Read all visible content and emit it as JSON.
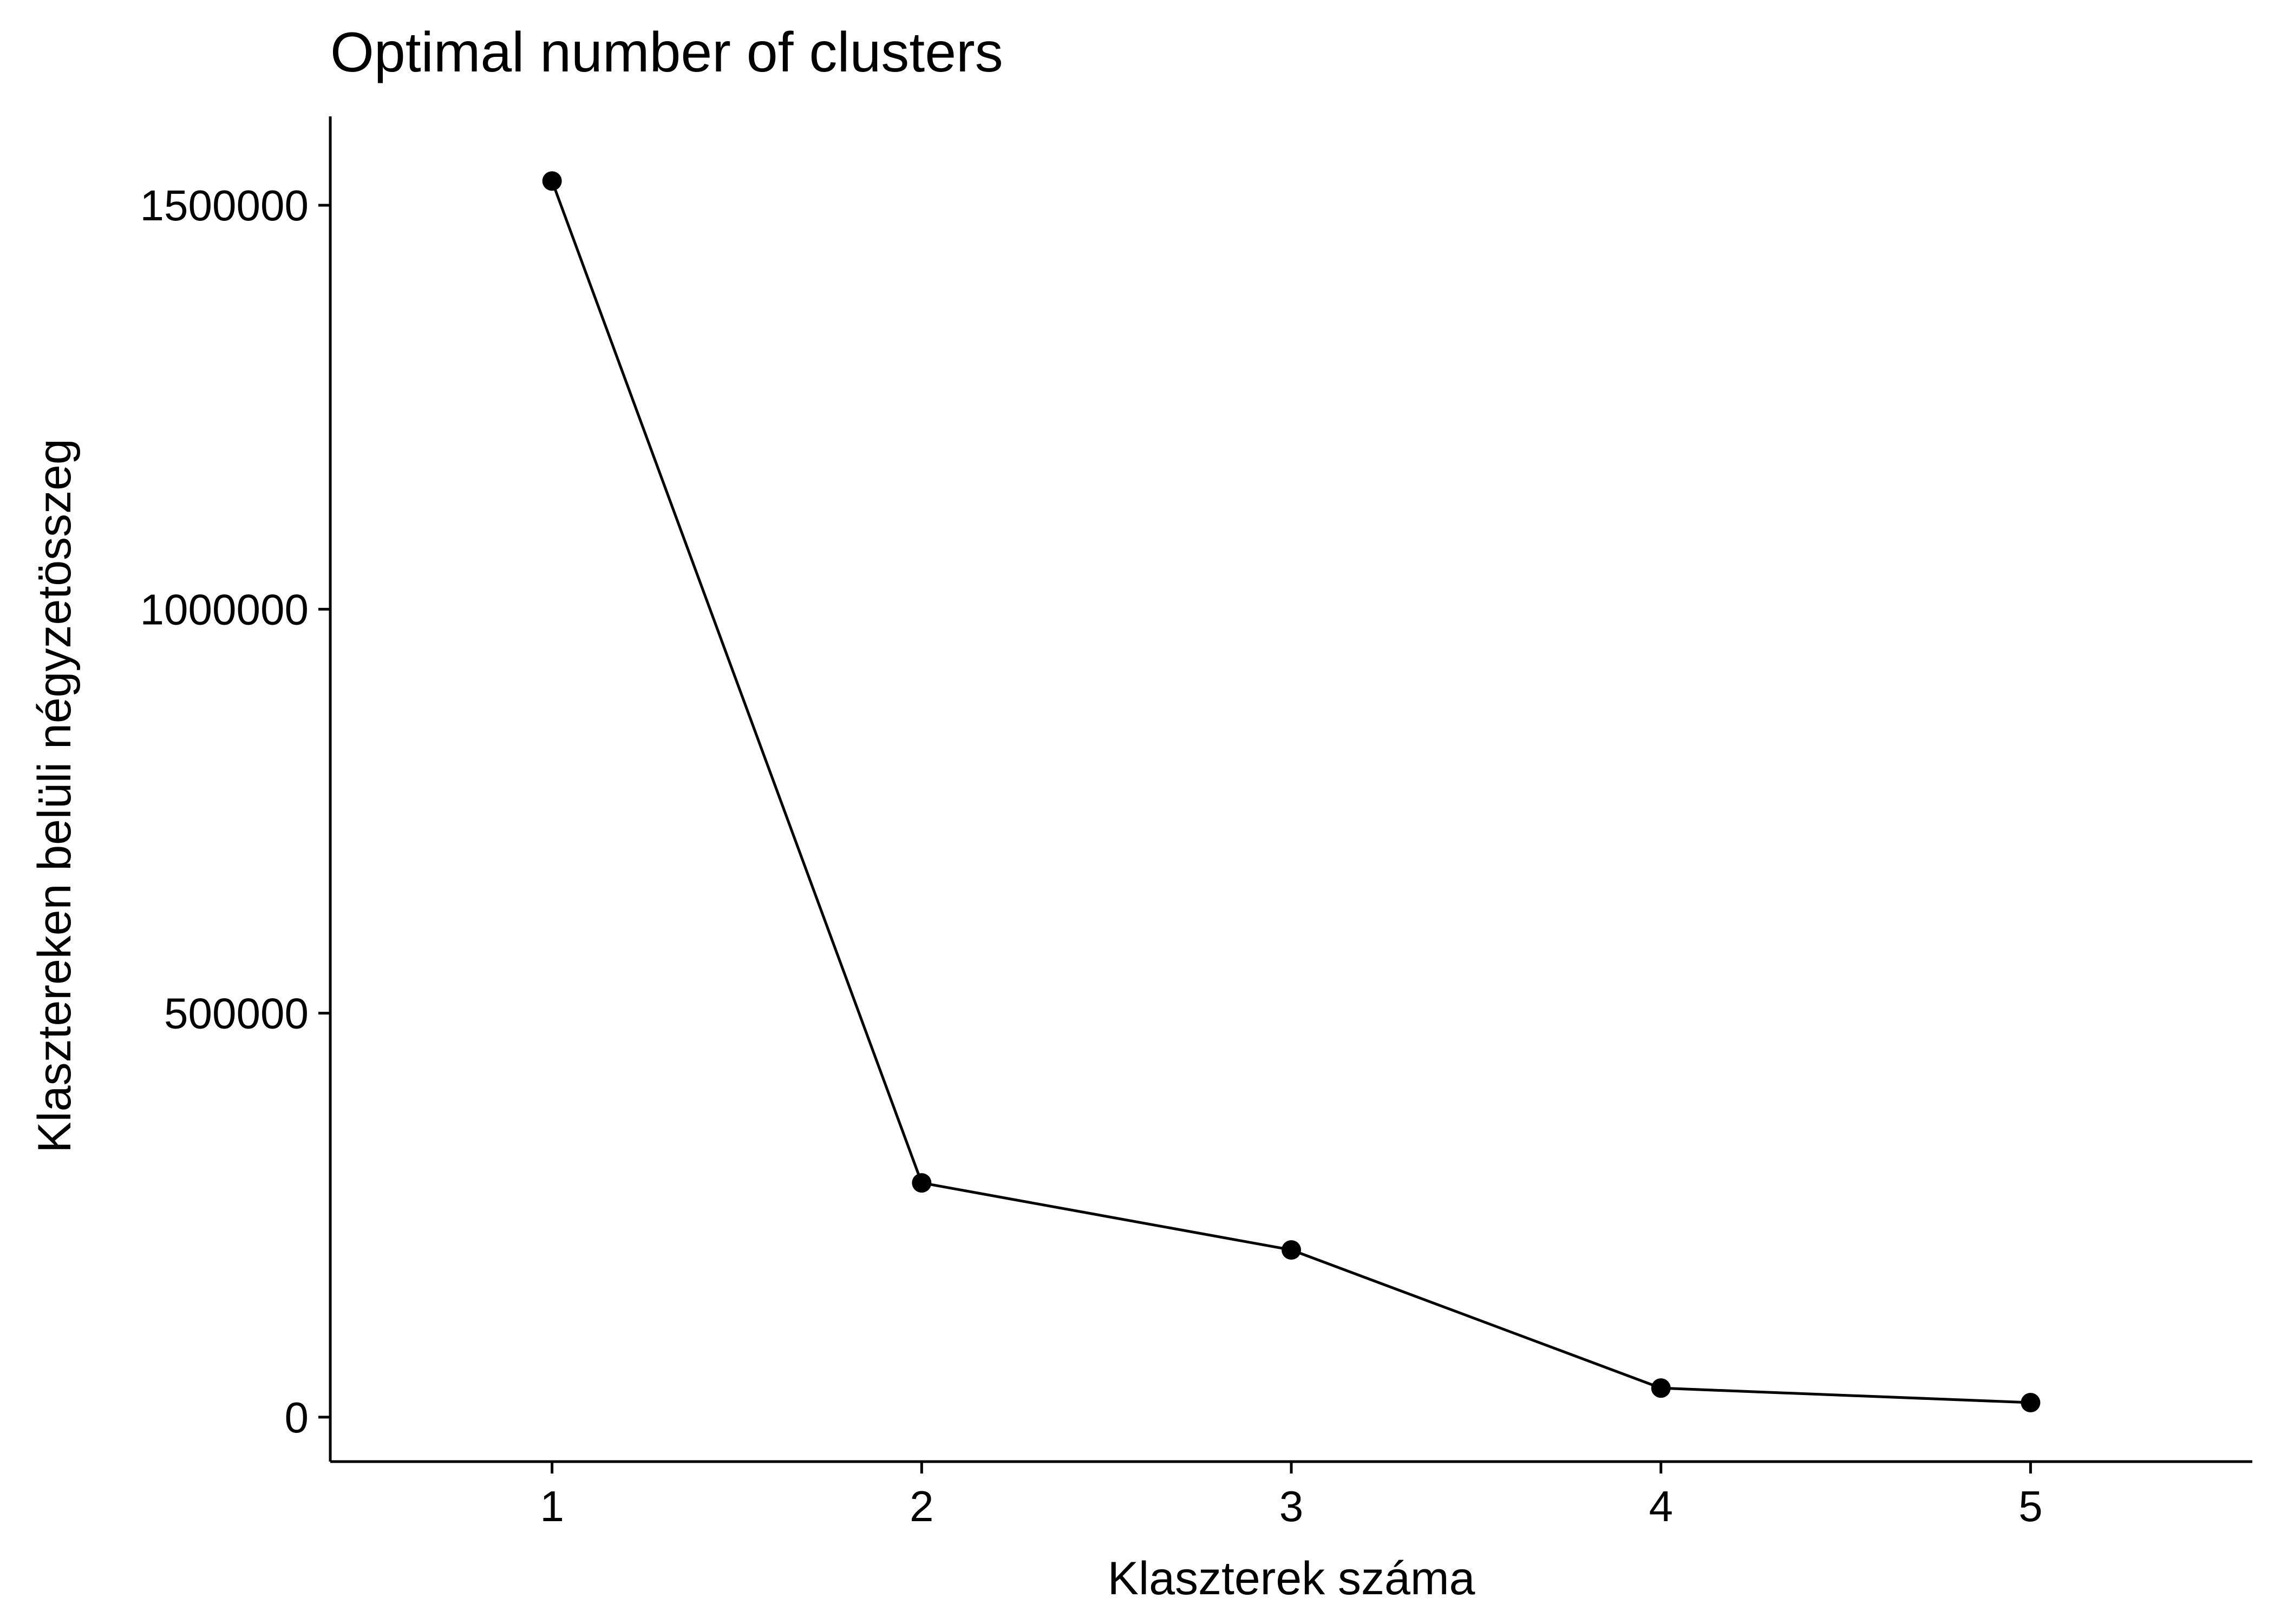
{
  "chart_data": {
    "type": "line",
    "title": "Optimal number of clusters",
    "xlabel": "Klaszterek száma",
    "ylabel": "Klasztereken belüli négyzetösszeg",
    "x": [
      1,
      2,
      3,
      4,
      5
    ],
    "series": [
      {
        "values": [
          1530000,
          290000,
          207000,
          36000,
          18000
        ]
      }
    ],
    "xlim": [
      0.4,
      5.6
    ],
    "ylim": [
      -55000,
      1610000
    ],
    "xticks": [
      1,
      2,
      3,
      4,
      5
    ],
    "xtick_labels": [
      "1",
      "2",
      "3",
      "4",
      "5"
    ],
    "yticks": [
      0,
      500000,
      1000000,
      1500000
    ],
    "ytick_labels": [
      "0",
      "500000",
      "1000000",
      "1500000"
    ],
    "grid": false,
    "legend": "none",
    "colors": {
      "line": "#000000",
      "points": "#000000",
      "background": "#ffffff"
    }
  }
}
